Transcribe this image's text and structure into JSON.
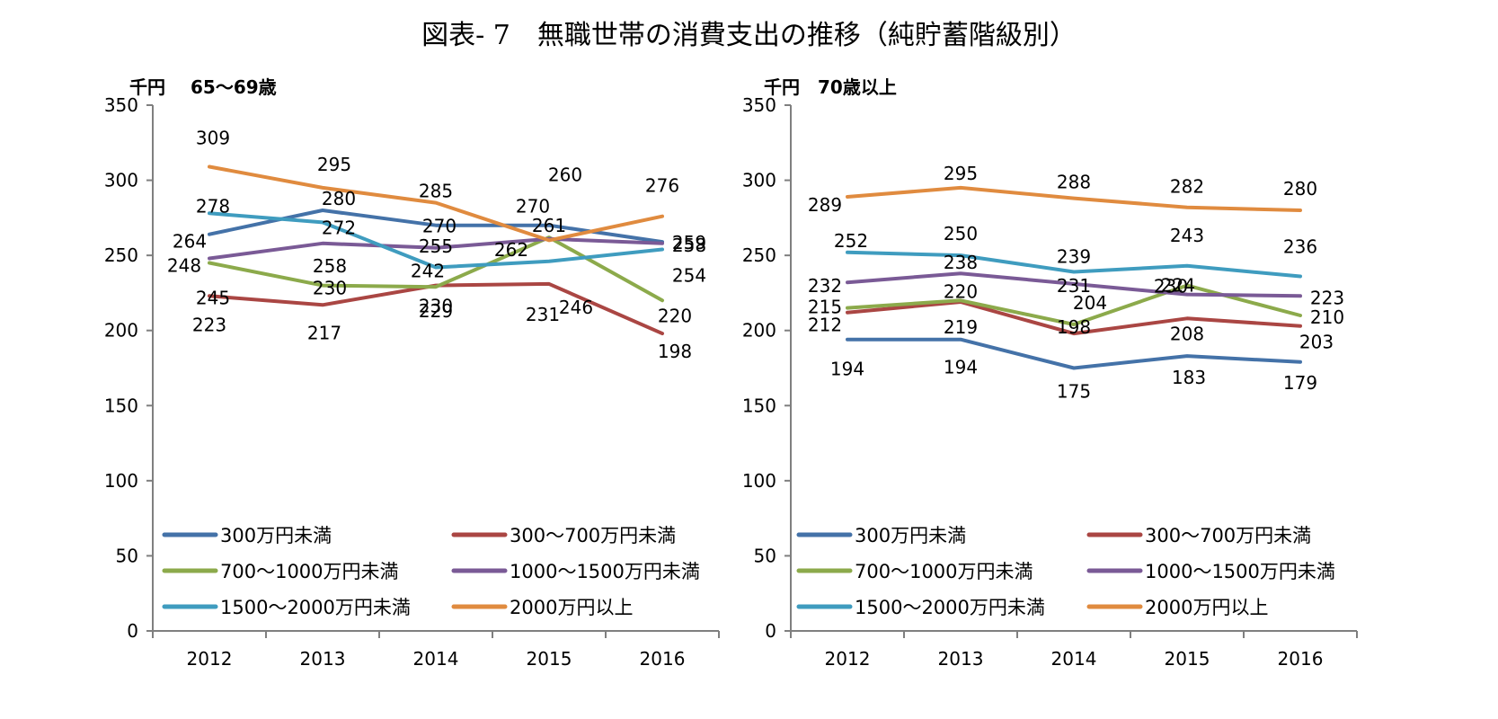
{
  "figure": {
    "title": "図表- 7　無職世帯の消費支出の推移（純貯蓄階級別）"
  },
  "colors": [
    "#4472A8",
    "#AA4643",
    "#8CAA4B",
    "#7A5A96",
    "#3F9CBF",
    "#E08B3F"
  ],
  "chart_data": [
    {
      "type": "line",
      "unit_label": "千円",
      "subtitle": "65～69歳",
      "categories": [
        "2012",
        "2013",
        "2014",
        "2015",
        "2016"
      ],
      "ylim": [
        0,
        350
      ],
      "yticks": [
        0,
        50,
        100,
        150,
        200,
        250,
        300,
        350
      ],
      "grid": false,
      "legend": "bottom",
      "series": [
        {
          "name": "300万円未満",
          "values": [
            264,
            280,
            270,
            270,
            259
          ]
        },
        {
          "name": "300～700万円未満",
          "values": [
            223,
            217,
            230,
            231,
            198
          ]
        },
        {
          "name": "700～1000万円未満",
          "values": [
            245,
            230,
            229,
            262,
            220
          ]
        },
        {
          "name": "1000～1500万円未満",
          "values": [
            248,
            258,
            255,
            261,
            258
          ]
        },
        {
          "name": "1500～2000万円未満",
          "values": [
            278,
            272,
            242,
            246,
            254
          ]
        },
        {
          "name": "2000万円以上",
          "values": [
            309,
            295,
            285,
            260,
            276
          ]
        }
      ]
    },
    {
      "type": "line",
      "unit_label": "千円",
      "subtitle": "70歳以上",
      "categories": [
        "2012",
        "2013",
        "2014",
        "2015",
        "2016"
      ],
      "ylim": [
        0,
        350
      ],
      "yticks": [
        0,
        50,
        100,
        150,
        200,
        250,
        300,
        350
      ],
      "grid": false,
      "legend": "bottom",
      "series": [
        {
          "name": "300万円未満",
          "values": [
            194,
            194,
            175,
            183,
            179
          ]
        },
        {
          "name": "300～700万円未満",
          "values": [
            212,
            219,
            198,
            208,
            203
          ]
        },
        {
          "name": "700～1000万円未満",
          "values": [
            215,
            220,
            204,
            230,
            210
          ]
        },
        {
          "name": "1000～1500万円未満",
          "values": [
            232,
            238,
            231,
            224,
            223
          ]
        },
        {
          "name": "1500～2000万円未満",
          "values": [
            252,
            250,
            239,
            243,
            236
          ]
        },
        {
          "name": "2000万円以上",
          "values": [
            289,
            295,
            288,
            282,
            280
          ]
        }
      ]
    }
  ]
}
